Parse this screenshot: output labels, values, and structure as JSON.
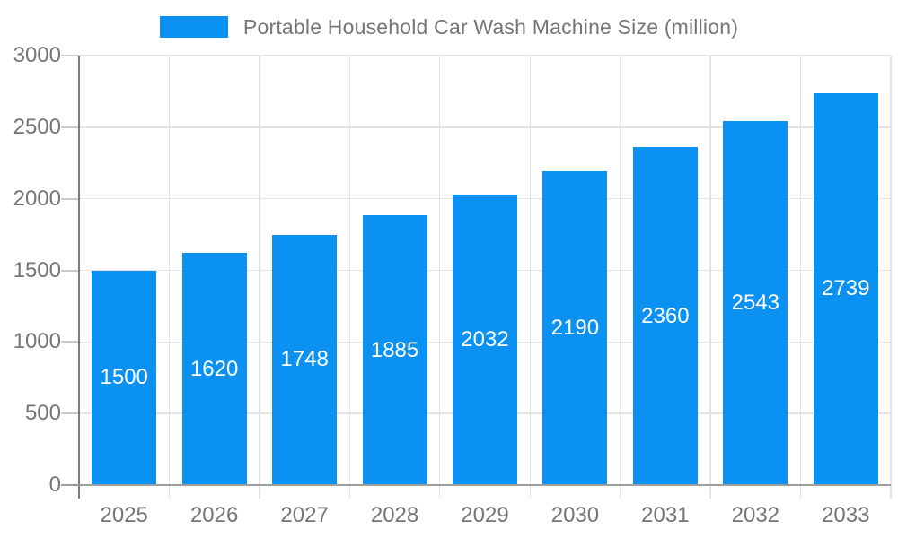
{
  "chart_data": {
    "type": "bar",
    "title": "Portable Household Car Wash Machine Size (million)",
    "categories": [
      "2025",
      "2026",
      "2027",
      "2028",
      "2029",
      "2030",
      "2031",
      "2032",
      "2033"
    ],
    "values": [
      1500,
      1620,
      1748,
      1885,
      2032,
      2190,
      2360,
      2543,
      2739
    ],
    "xlabel": "",
    "ylabel": "",
    "ylim": [
      0,
      3000
    ],
    "yticks": [
      0,
      500,
      1000,
      1500,
      2000,
      2500,
      3000
    ],
    "grid": true,
    "legend_position": "top-center",
    "value_labels": "inside-center-white",
    "colors": {
      "bar": "#0a91f2",
      "title_text": "#757575",
      "axis_text": "#757575",
      "gridline": "#e3e3e3",
      "tick": "#c9c9c9",
      "y_axis_line": "#7a7a7a",
      "baseline": "#9e9e9e",
      "value_label": "#ffffff",
      "background": "#ffffff"
    }
  }
}
